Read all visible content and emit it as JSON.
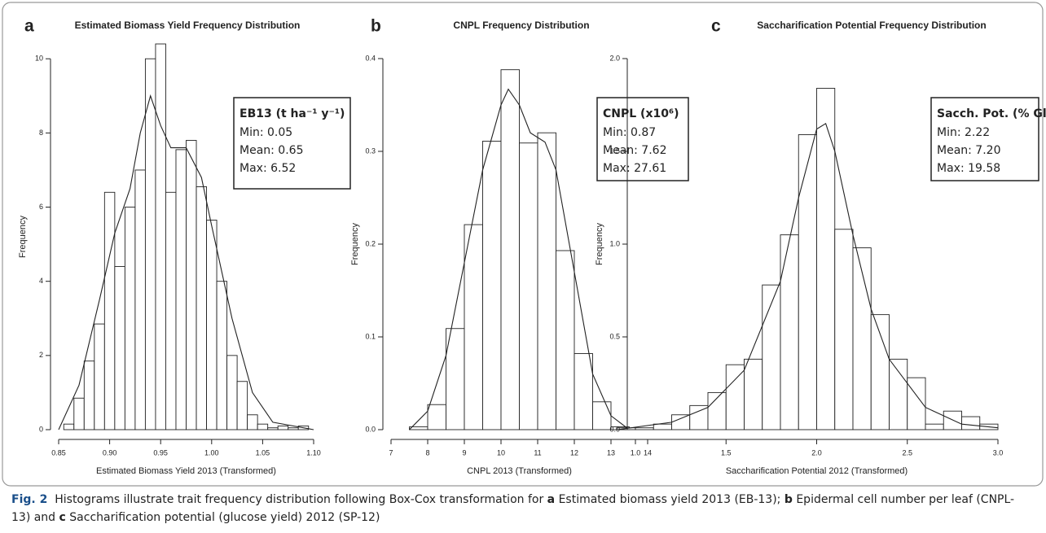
{
  "chart_data": [
    {
      "type": "histogram",
      "panel": "a",
      "title": "Estimated Biomass Yield Frequency Distribution",
      "x_label": "Estimated Biomass Yield 2013 (Transformed)",
      "y_label": "Frequency",
      "bins": [
        0.855,
        0.865,
        0.875,
        0.885,
        0.895,
        0.905,
        0.915,
        0.925,
        0.935,
        0.945,
        0.955,
        0.965,
        0.975,
        0.985,
        0.995,
        1.005,
        1.015,
        1.025,
        1.035,
        1.045,
        1.055,
        1.065,
        1.075,
        1.085,
        1.095
      ],
      "values": [
        0.15,
        0.85,
        1.85,
        2.85,
        6.4,
        4.4,
        6.0,
        7.0,
        10.0,
        10.4,
        6.4,
        7.55,
        7.8,
        6.55,
        5.65,
        4.0,
        2.0,
        1.3,
        0.4,
        0.15,
        0.05,
        0.1,
        0.05,
        0.1
      ],
      "density": {
        "x": [
          0.85,
          0.87,
          0.89,
          0.905,
          0.92,
          0.93,
          0.94,
          0.95,
          0.96,
          0.975,
          0.99,
          1.0,
          1.02,
          1.04,
          1.06,
          1.1
        ],
        "y": [
          0,
          1.2,
          3.5,
          5.3,
          6.5,
          8.0,
          9.0,
          8.2,
          7.6,
          7.6,
          6.8,
          5.5,
          3.0,
          1.0,
          0.2,
          0
        ]
      },
      "xlim": [
        0.85,
        1.1
      ],
      "xticks": [
        0.85,
        {
          "value": 0.9,
          "label": "0.90"
        },
        0.95,
        {
          "value": 1.0,
          "label": "1.00"
        },
        1.05,
        {
          "value": 1.1,
          "label": "1.10"
        }
      ],
      "ylim": [
        0,
        10.4
      ],
      "yticks": [
        0,
        2,
        4,
        6,
        8,
        10
      ],
      "annotation": {
        "title": "EB13 (t ha⁻¹ y⁻¹)",
        "lines": [
          "Min: 0.05",
          "Mean: 0.65",
          "Max: 6.52"
        ]
      }
    },
    {
      "type": "histogram",
      "panel": "b",
      "title": "CNPL Frequency Distribution",
      "x_label": "CNPL 2013 (Transformed)",
      "y_label": "Frequency",
      "bins": [
        7.5,
        8,
        8.5,
        9,
        9.5,
        10,
        10.5,
        11,
        11.5,
        12,
        12.5,
        13,
        13.5
      ],
      "values": [
        0.003,
        0.027,
        0.109,
        0.221,
        0.311,
        0.388,
        0.309,
        0.32,
        0.193,
        0.082,
        0.03,
        0.003
      ],
      "density": {
        "x": [
          7.5,
          8,
          8.5,
          9,
          9.5,
          10,
          10.2,
          10.5,
          10.8,
          11.2,
          11.5,
          12,
          12.5,
          13,
          13.5
        ],
        "y": [
          0,
          0.02,
          0.08,
          0.18,
          0.28,
          0.35,
          0.367,
          0.35,
          0.32,
          0.31,
          0.28,
          0.17,
          0.06,
          0.015,
          0
        ]
      },
      "xlim": [
        7,
        14
      ],
      "xticks": [
        7,
        8,
        9,
        10,
        11,
        12,
        13,
        14
      ],
      "ylim": [
        0,
        0.4
      ],
      "yticks": [
        {
          "value": 0,
          "label": "0.0"
        },
        0.1,
        0.2,
        0.3,
        0.4
      ],
      "annotation": {
        "title": "CNPL (x10⁶)",
        "lines": [
          "Min: 0.87",
          "Mean: 7.62",
          "Max: 27.61"
        ]
      }
    },
    {
      "type": "histogram",
      "panel": "c",
      "title": "Saccharification Potential Frequency Distribution",
      "x_label": "Saccharification Potential 2012 (Transformed)",
      "y_label": "Frequency",
      "bins": [
        0.9,
        1.0,
        1.1,
        1.2,
        1.3,
        1.4,
        1.5,
        1.6,
        1.7,
        1.8,
        1.9,
        2.0,
        2.1,
        2.2,
        2.3,
        2.4,
        2.5,
        2.6,
        2.7,
        2.8,
        2.9,
        3.0
      ],
      "values": [
        0.01,
        0.01,
        0.03,
        0.08,
        0.13,
        0.2,
        0.35,
        0.38,
        0.78,
        1.05,
        1.59,
        1.84,
        1.08,
        0.98,
        0.62,
        0.38,
        0.28,
        0.03,
        0.1,
        0.07,
        0.03
      ],
      "density": {
        "x": [
          0.9,
          1.2,
          1.4,
          1.6,
          1.8,
          1.9,
          2.0,
          2.05,
          2.1,
          2.2,
          2.3,
          2.4,
          2.6,
          2.8,
          3.0
        ],
        "y": [
          0,
          0.04,
          0.12,
          0.32,
          0.8,
          1.25,
          1.62,
          1.65,
          1.5,
          1.05,
          0.65,
          0.38,
          0.12,
          0.03,
          0.01
        ]
      },
      "xlim": [
        1.0,
        3.0
      ],
      "xticks": [
        {
          "value": 1,
          "label": "1.0"
        },
        1.5,
        {
          "value": 2,
          "label": "2.0"
        },
        2.5,
        {
          "value": 3,
          "label": "3.0"
        }
      ],
      "ylim": [
        0,
        2.0
      ],
      "yticks": [
        {
          "value": 0,
          "label": "0.0"
        },
        0.5,
        {
          "value": 1,
          "label": "1.0"
        },
        1.5,
        {
          "value": 2,
          "label": "2.0"
        }
      ],
      "annotation": {
        "title": "Sacch. Pot. (% Glu)",
        "lines": [
          "Min: 2.22",
          "Mean: 7.20",
          "Max: 19.58"
        ]
      }
    }
  ],
  "caption": [
    "Fig. 2",
    "Histograms illustrate trait frequency distribution following Box-Cox transformation for ",
    "a",
    " Estimated biomass yield 2013 (EB-13); ",
    "b",
    " Epidermal cell number per leaf (CNPL-13) and ",
    "c",
    " Saccharification potential (glucose yield) 2012 (SP-12)"
  ]
}
